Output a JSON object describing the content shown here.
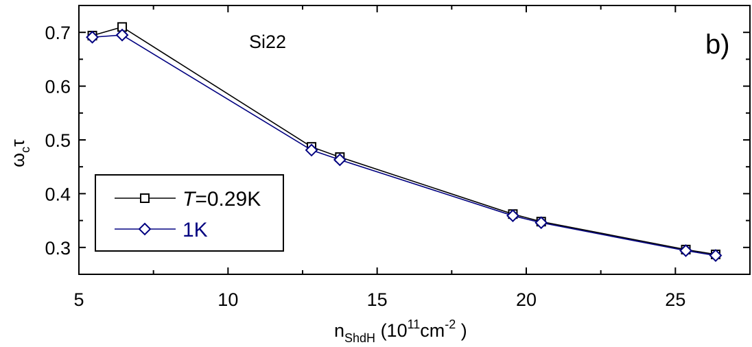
{
  "chart_data": {
    "type": "line",
    "panel_label": "b)",
    "annotation": "Si22",
    "xlabel": {
      "main": "n",
      "sub": "ShdH",
      "open": " (10",
      "exp1": "11",
      "mid": "cm",
      "exp2": "-2",
      "close": " )"
    },
    "ylabel": {
      "main": "ω",
      "sub": "c",
      "tail": "τ"
    },
    "xlim": [
      5,
      27.5
    ],
    "ylim": [
      0.25,
      0.75
    ],
    "xticks": [
      5,
      10,
      15,
      20,
      25
    ],
    "xtick_labels": [
      "5",
      "10",
      "15",
      "20",
      "25"
    ],
    "yticks": [
      0.3,
      0.4,
      0.5,
      0.6,
      0.7
    ],
    "ytick_labels": [
      "0.3",
      "0.4",
      "0.5",
      "0.6",
      "0.7"
    ],
    "legend_placement": "lower-left",
    "grid": false,
    "series": [
      {
        "name_italic": "T",
        "name": "=0.29K",
        "marker": "square",
        "color": "#000000",
        "x": [
          5.45,
          6.45,
          12.8,
          13.75,
          19.55,
          20.5,
          25.35,
          26.35
        ],
        "y": [
          0.694,
          0.71,
          0.487,
          0.468,
          0.362,
          0.348,
          0.296,
          0.287
        ]
      },
      {
        "name_italic": "",
        "name": "1K",
        "marker": "diamond",
        "color": "#000080",
        "x": [
          5.45,
          6.45,
          12.8,
          13.75,
          19.55,
          20.5,
          25.35,
          26.35
        ],
        "y": [
          0.691,
          0.695,
          0.481,
          0.463,
          0.359,
          0.346,
          0.294,
          0.285
        ]
      }
    ]
  }
}
